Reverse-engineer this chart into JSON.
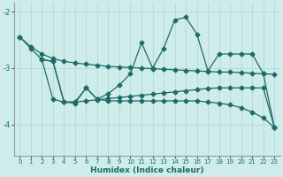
{
  "xlabel": "Humidex (Indice chaleur)",
  "xlim": [
    -0.5,
    23.5
  ],
  "ylim": [
    -4.55,
    -1.85
  ],
  "yticks": [
    -4,
    -3,
    -2
  ],
  "xticks": [
    0,
    1,
    2,
    3,
    4,
    5,
    6,
    7,
    8,
    9,
    10,
    11,
    12,
    13,
    14,
    15,
    16,
    17,
    18,
    19,
    20,
    21,
    22,
    23
  ],
  "bg_color": "#ceecea",
  "line_color": "#1e6b68",
  "grid_color": "#b8dbd9",
  "line_width": 0.9,
  "marker_size": 2.5,
  "line1_x": [
    0,
    1,
    2,
    3,
    4,
    5,
    6,
    7,
    8,
    9,
    10,
    11,
    12,
    13,
    14,
    15,
    16,
    17,
    18,
    19,
    20,
    21,
    22,
    23
  ],
  "line1_y": [
    -2.45,
    -2.62,
    -2.75,
    -2.83,
    -2.88,
    -2.91,
    -2.93,
    -2.95,
    -2.97,
    -2.98,
    -2.99,
    -3.0,
    -3.01,
    -3.02,
    -3.03,
    -3.04,
    -3.05,
    -3.06,
    -3.07,
    -3.07,
    -3.08,
    -3.09,
    -3.1,
    -3.11
  ],
  "line2_x": [
    0,
    1,
    2,
    3,
    4,
    5,
    6,
    7,
    8,
    9,
    10,
    11,
    12,
    13,
    14,
    15,
    16,
    17,
    18,
    19,
    20,
    21,
    22,
    23
  ],
  "line2_y": [
    -2.45,
    -2.65,
    -2.85,
    -3.55,
    -3.6,
    -3.6,
    -3.58,
    -3.56,
    -3.54,
    -3.52,
    -3.5,
    -3.48,
    -3.46,
    -3.44,
    -3.42,
    -3.4,
    -3.38,
    -3.36,
    -3.35,
    -3.35,
    -3.35,
    -3.35,
    -3.35,
    -4.05
  ],
  "line3_x": [
    2,
    3,
    4,
    5,
    6,
    7,
    8,
    9,
    10,
    11,
    12,
    13,
    14,
    15,
    16,
    17,
    18,
    19,
    20,
    21,
    22,
    23
  ],
  "line3_y": [
    -2.85,
    -2.88,
    -3.6,
    -3.6,
    -3.35,
    -3.55,
    -3.45,
    -3.3,
    -3.1,
    -2.55,
    -3.0,
    -2.65,
    -2.15,
    -2.1,
    -2.4,
    -3.05,
    -2.75,
    -2.75,
    -2.75,
    -2.75,
    -3.1,
    -4.05
  ],
  "line4_x": [
    2,
    3,
    4,
    5,
    6,
    7,
    8,
    9,
    10,
    11,
    12,
    13,
    14,
    15,
    16,
    17,
    18,
    19,
    20,
    21,
    22,
    23
  ],
  "line4_y": [
    -2.85,
    -2.88,
    -3.6,
    -3.62,
    -3.35,
    -3.55,
    -3.58,
    -3.58,
    -3.58,
    -3.58,
    -3.58,
    -3.58,
    -3.58,
    -3.58,
    -3.58,
    -3.6,
    -3.62,
    -3.65,
    -3.7,
    -3.78,
    -3.88,
    -4.05
  ]
}
